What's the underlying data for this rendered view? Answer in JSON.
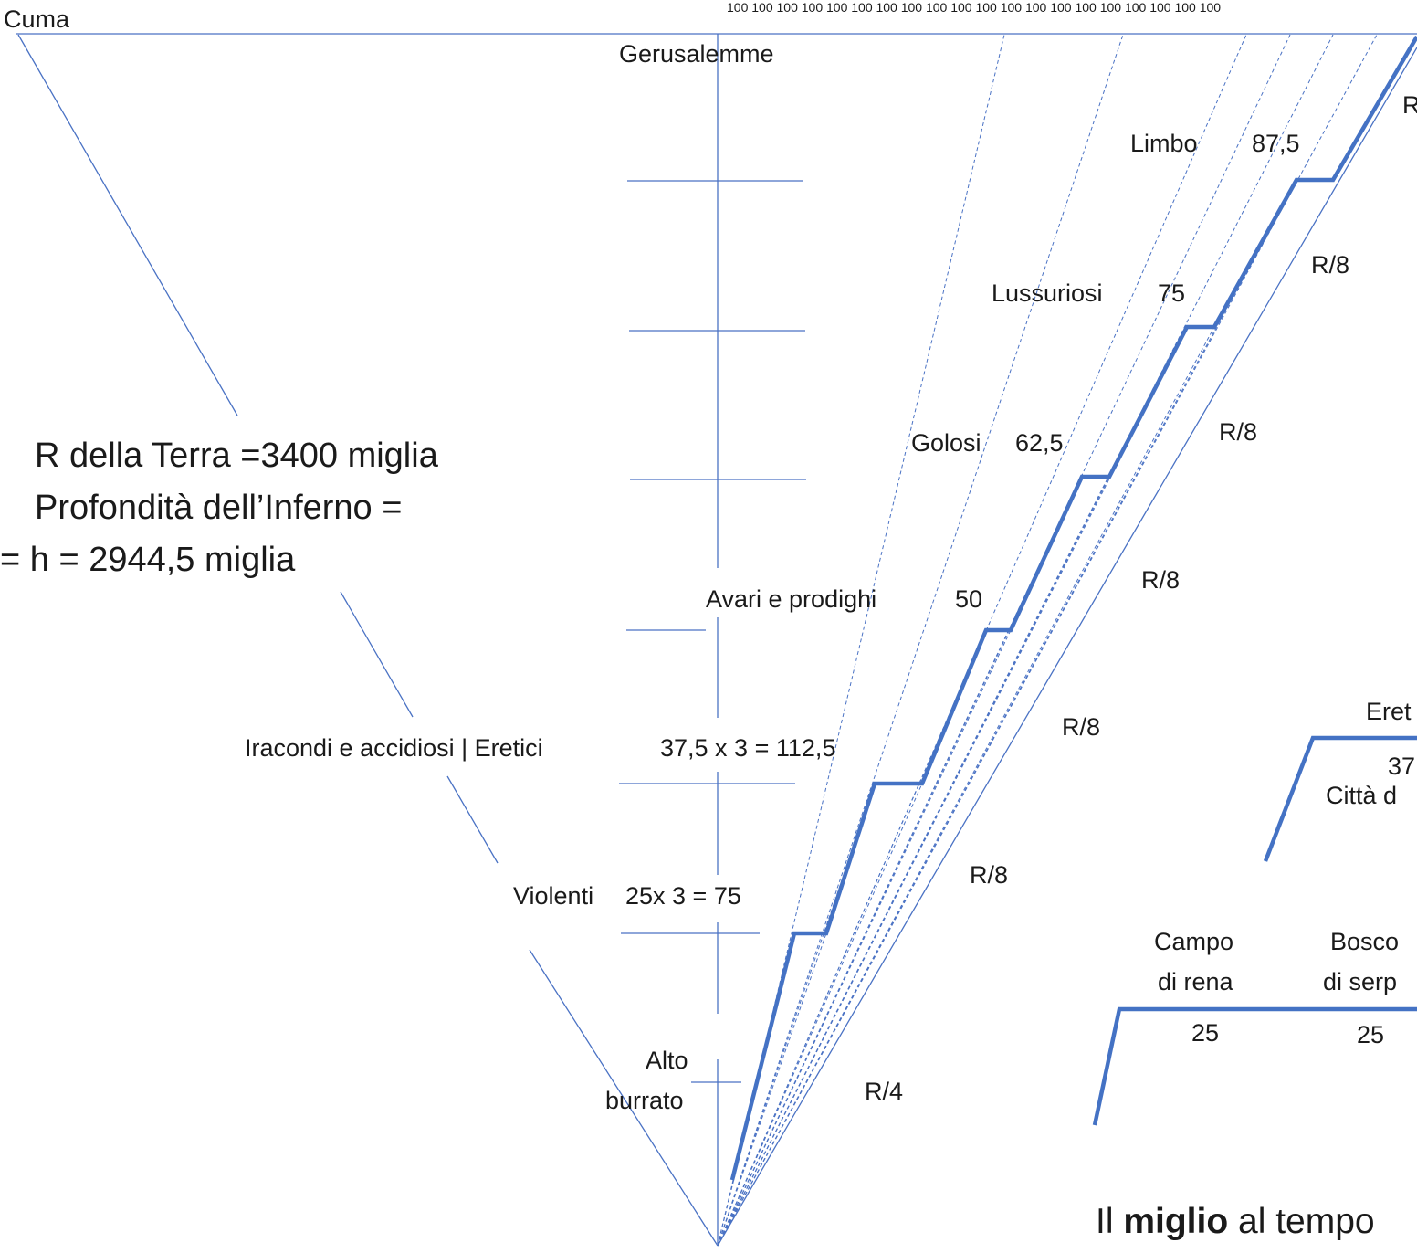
{
  "top_label": "Cuma",
  "center_label": "Gerusalemme",
  "tick_numbers": "100 100 100 100 100 100 100 100 100 100 100 100 100 100 100 100 100 100 100 100",
  "edge_letter": "R",
  "info": {
    "line1": "R della Terra =3400 miglia",
    "line2": "Profondità dell’Inferno =",
    "line3": "= h = 2944,5 miglia"
  },
  "circles": [
    {
      "name": "Limbo",
      "value": "87,5"
    },
    {
      "name": "Lussuriosi",
      "value": "75"
    },
    {
      "name": "Golosi",
      "value": "62,5"
    },
    {
      "name": "Avari e prodighi",
      "value": "50"
    },
    {
      "name": "Iracondi e accidiosi | Eretici",
      "value": "37,5 x 3 =  112,5"
    },
    {
      "name": "Violenti",
      "value": "25x 3 =  75"
    }
  ],
  "alto_burrato": {
    "line1": "Alto",
    "line2": "burrato"
  },
  "ratios": {
    "r8": "R/8",
    "r4": "R/4"
  },
  "inset_upper": {
    "title": "Eret",
    "value": "37",
    "caption": "Città d"
  },
  "inset_lower": {
    "campo_line1": "Campo",
    "campo_line2": "di rena",
    "bosco_line1": "Bosco",
    "bosco_line2": "di serp",
    "campo_value": "25",
    "bosco_value": "25"
  },
  "footer": {
    "pre": "Il ",
    "bold": "miglio",
    "post": " al tempo"
  },
  "colors": {
    "thin_line": "#4a72c4",
    "thick_line": "#4472c4",
    "text": "#1a1a1a"
  }
}
